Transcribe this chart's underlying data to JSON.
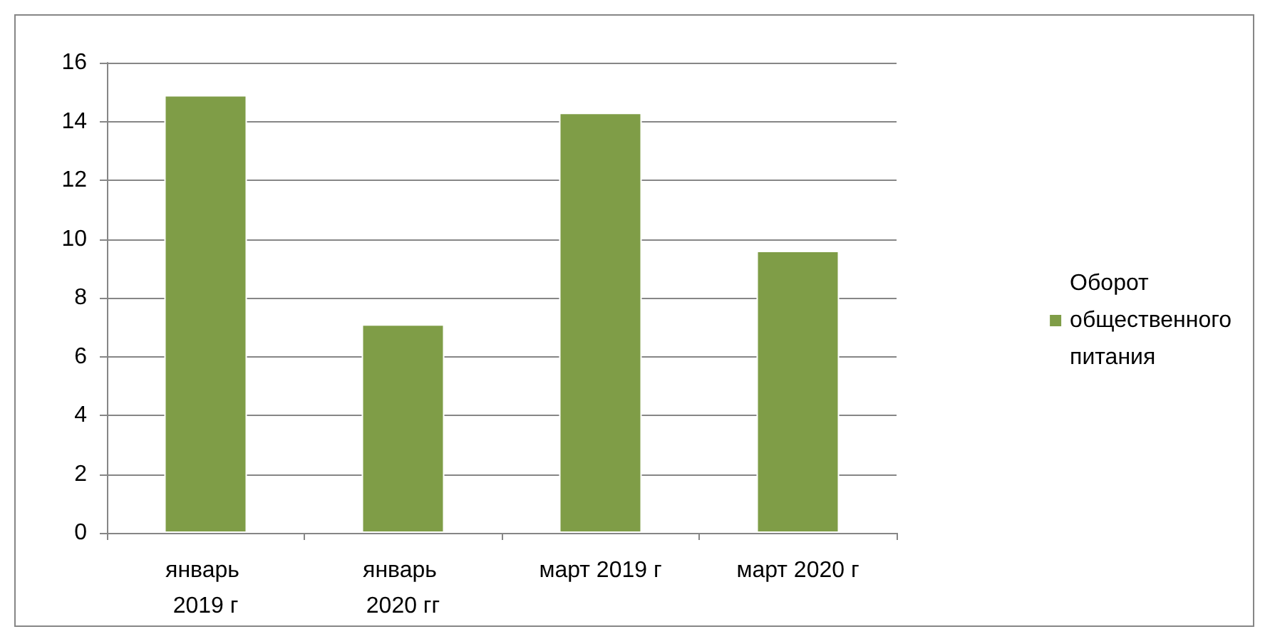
{
  "chart_data": {
    "type": "bar",
    "categories": [
      "январь 2019 г",
      "январь 2020 гг",
      "март 2019 г",
      "март 2020 г"
    ],
    "series": [
      {
        "name": "Оборот общественного питания",
        "color": "#7f9d47",
        "values": [
          14.9,
          7.1,
          14.3,
          9.6
        ]
      }
    ],
    "ylim": [
      0,
      16
    ],
    "yticks": [
      0,
      2,
      4,
      6,
      8,
      10,
      12,
      14,
      16
    ],
    "grid": "y",
    "legend": "right"
  }
}
